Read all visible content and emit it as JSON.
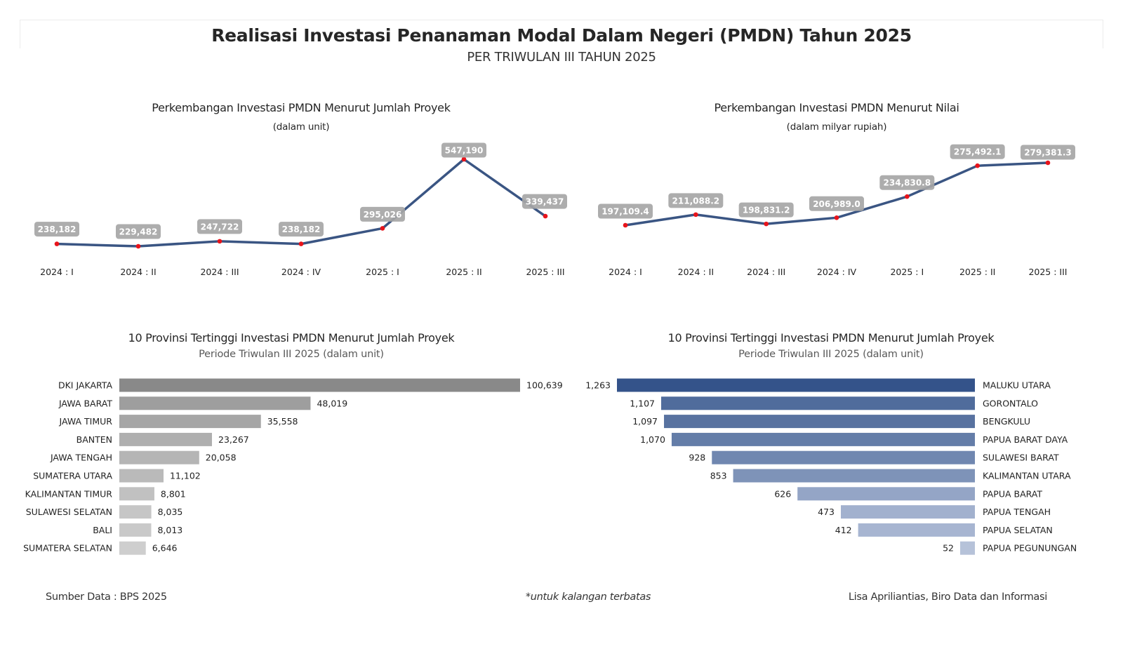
{
  "header": {
    "title": "Realisasi Investasi Penanaman Modal Dalam Negeri (PMDN) Tahun 2025",
    "subtitle": "PER TRIWULAN III TAHUN 2025"
  },
  "colors": {
    "line": "#3A5583",
    "point": "#E8141B",
    "label_box": "#A6A6A6",
    "left_bars": [
      "#898989",
      "#9E9E9E",
      "#A6A6A6",
      "#AFAFAF",
      "#B5B5B5",
      "#BABABA",
      "#C1C1C1",
      "#C6C6C6",
      "#C9C9C9",
      "#CECECE"
    ],
    "right_bars": [
      "#34538A",
      "#506C9C",
      "#5872A0",
      "#647DA8",
      "#7087B0",
      "#7E93B8",
      "#94A5C6",
      "#A2B1CE",
      "#A7B5D1",
      "#B6C2D9"
    ]
  },
  "chart_data": [
    {
      "type": "line",
      "title": "Perkembangan Investasi PMDN Menurut Jumlah Proyek",
      "subtitle": "(dalam unit)",
      "categories": [
        "2024 : I",
        "2024 : II",
        "2024 : III",
        "2024 : IV",
        "2025 : I",
        "2025 : II",
        "2025 : III"
      ],
      "values": [
        238182,
        229482,
        247722,
        238182,
        295026,
        547190,
        339437
      ],
      "labels": [
        "238,182",
        "229,482",
        "247,722",
        "238,182",
        "295,026",
        "547,190",
        "339,437"
      ],
      "xlabel": "",
      "ylabel": "",
      "grid": false,
      "legend": "none"
    },
    {
      "type": "line",
      "title": "Perkembangan Investasi PMDN Menurut Nilai",
      "subtitle": "(dalam milyar rupiah)",
      "categories": [
        "2024 : I",
        "2024 : II",
        "2024 : III",
        "2024 : IV",
        "2025 : I",
        "2025 : II",
        "2025 : III"
      ],
      "values": [
        197109.4,
        211088.2,
        198831.2,
        206989.0,
        234830.8,
        275492.1,
        279381.3
      ],
      "labels": [
        "197,109.4",
        "211,088.2",
        "198,831.2",
        "206,989.0",
        "234,830.8",
        "275,492.1",
        "279,381.3"
      ],
      "xlabel": "",
      "ylabel": "",
      "grid": false,
      "legend": "none"
    },
    {
      "type": "bar",
      "orientation": "horizontal",
      "title": "10 Provinsi Tertinggi Investasi PMDN Menurut Jumlah Proyek",
      "subtitle": "Periode Triwulan III 2025 (dalam unit)",
      "categories": [
        "DKI JAKARTA",
        "JAWA BARAT",
        "JAWA TIMUR",
        "BANTEN",
        "JAWA TENGAH",
        "SUMATERA UTARA",
        "KALIMANTAN TIMUR",
        "SULAWESI SELATAN",
        "BALI",
        "SUMATERA SELATAN"
      ],
      "values": [
        100639,
        48019,
        35558,
        23267,
        20058,
        11102,
        8801,
        8035,
        8013,
        6646
      ],
      "labels": [
        "100,639",
        "48,019",
        "35,558",
        "23,267",
        "20,058",
        "11,102",
        "8,801",
        "8,035",
        "8,013",
        "6,646"
      ],
      "xlabel": "",
      "ylabel": "",
      "grid": false,
      "legend": "none"
    },
    {
      "type": "bar",
      "orientation": "horizontal-reversed",
      "title": "10 Provinsi Tertinggi Investasi PMDN Menurut Jumlah Proyek",
      "subtitle": "Periode Triwulan III 2025 (dalam unit)",
      "categories": [
        "MALUKU UTARA",
        "GORONTALO",
        "BENGKULU",
        "PAPUA BARAT DAYA",
        "SULAWESI BARAT",
        "KALIMANTAN UTARA",
        "PAPUA BARAT",
        "PAPUA TENGAH",
        "PAPUA SELATAN",
        "PAPUA PEGUNUNGAN"
      ],
      "values": [
        1263,
        1107,
        1097,
        1070,
        928,
        853,
        626,
        473,
        412,
        52
      ],
      "labels": [
        "1,263",
        "1,107",
        "1,097",
        "1,070",
        "928",
        "853",
        "626",
        "473",
        "412",
        "52"
      ],
      "xlabel": "",
      "ylabel": "",
      "grid": false,
      "legend": "none"
    }
  ],
  "footer": {
    "source": "Sumber Data : BPS 2025",
    "note": "*untuk kalangan terbatas",
    "author": "Lisa Apriliantias, Biro Data dan Informasi"
  }
}
